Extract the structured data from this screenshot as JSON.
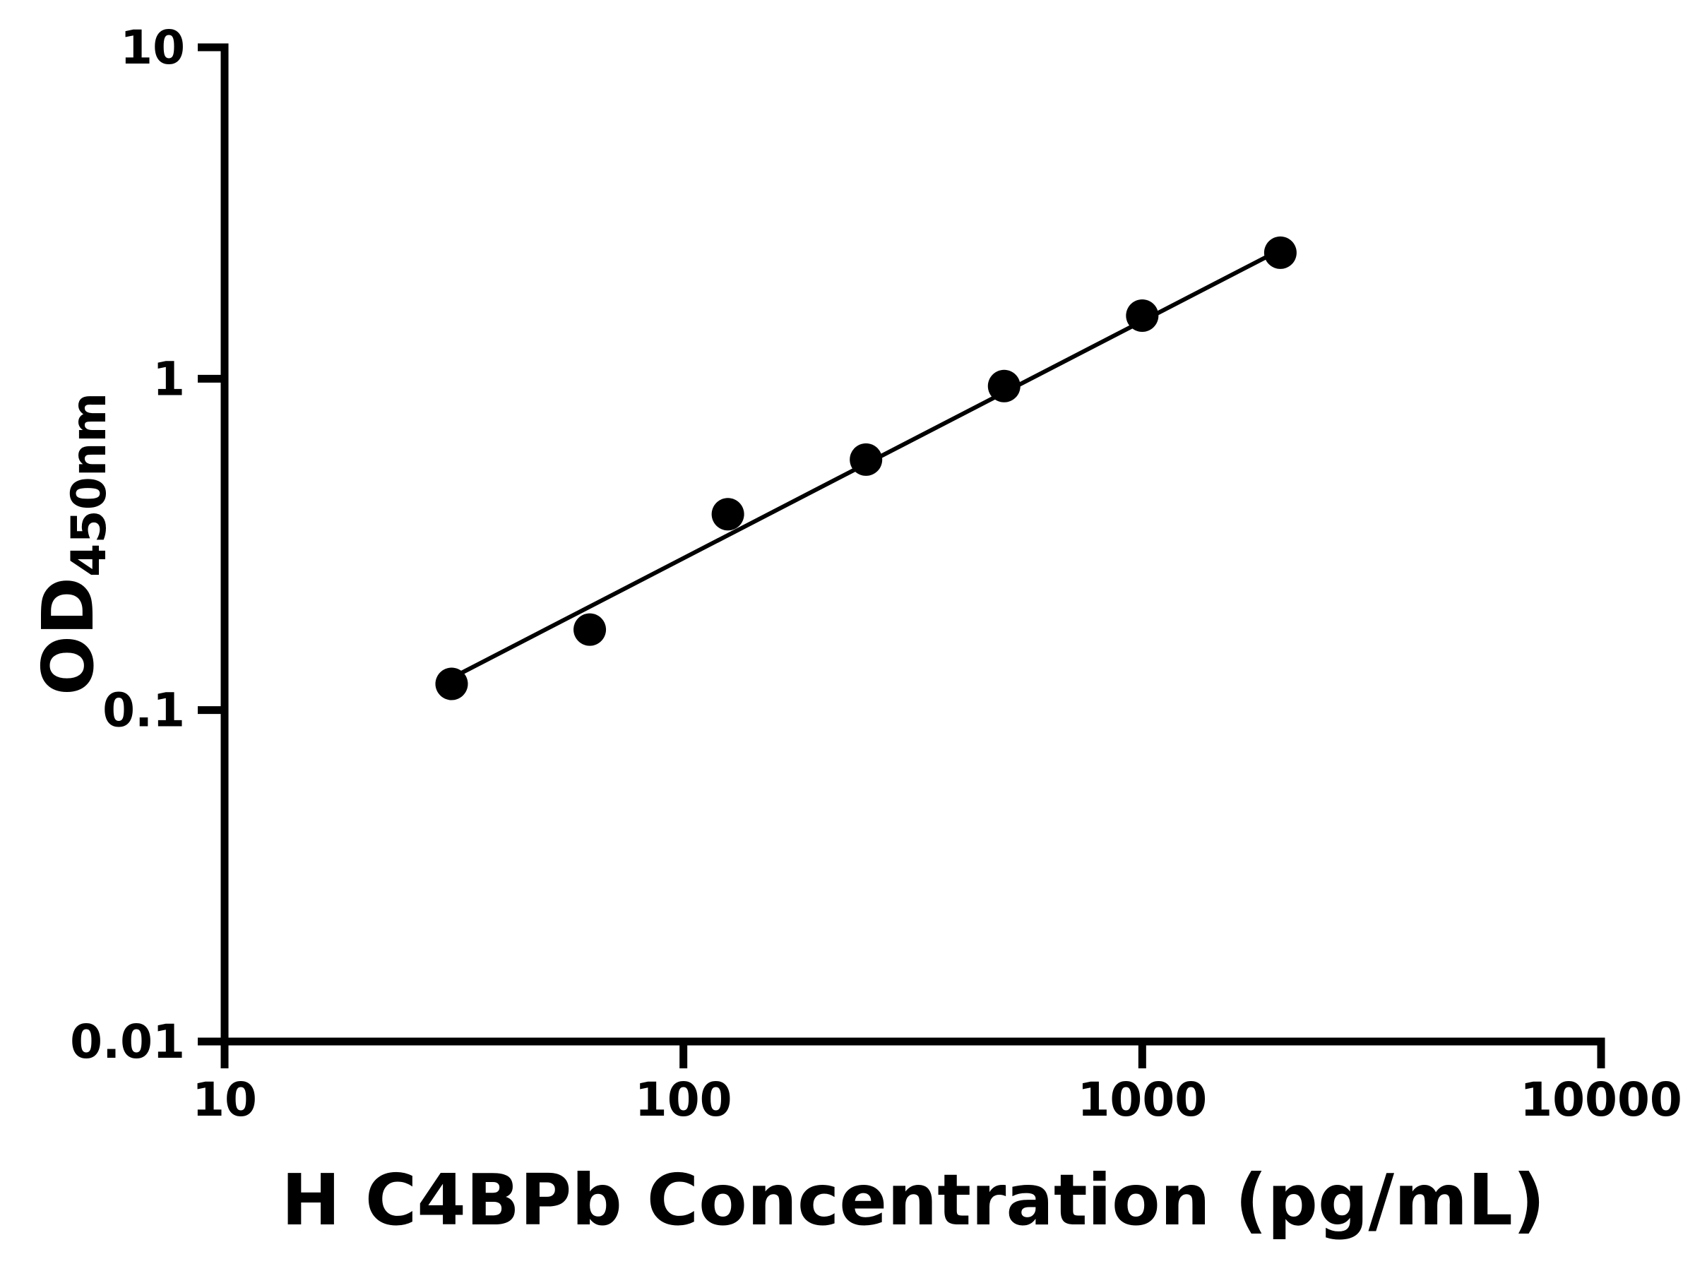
{
  "chart_data": {
    "type": "scatter",
    "title": "",
    "xlabel": "H C4BPb Concentration (pg/mL)",
    "ylabel": "OD",
    "ylabel_subscript": "450nm",
    "x_scale": "log",
    "y_scale": "log",
    "xlim": [
      10,
      10000
    ],
    "ylim": [
      0.01,
      10
    ],
    "x_ticks": [
      10,
      100,
      1000,
      10000
    ],
    "y_ticks": [
      10,
      1,
      0.1,
      0.01
    ],
    "grid": "off",
    "legend": "none",
    "marker_color": "#000000",
    "line_color": "#000000",
    "axis_color": "#000000",
    "background_color": "#ffffff",
    "points": [
      {
        "x": 31.25,
        "y": 0.12
      },
      {
        "x": 62.5,
        "y": 0.175
      },
      {
        "x": 125,
        "y": 0.39
      },
      {
        "x": 250,
        "y": 0.57
      },
      {
        "x": 500,
        "y": 0.95
      },
      {
        "x": 1000,
        "y": 1.55
      },
      {
        "x": 2000,
        "y": 2.4
      }
    ],
    "fit_line": [
      {
        "x": 31.25,
        "y": 0.125
      },
      {
        "x": 2000,
        "y": 2.45
      }
    ]
  }
}
